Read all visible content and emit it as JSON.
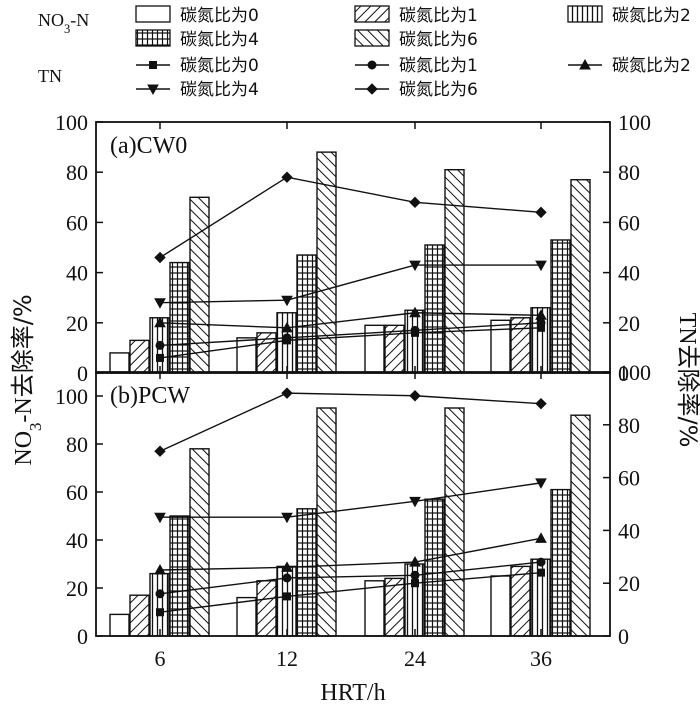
{
  "chart_data": [
    {
      "type": "bar",
      "panel_label": "(a)CW0",
      "categories": [
        "6",
        "12",
        "24",
        "36"
      ],
      "bar_series": [
        {
          "name": "碳氮比为0",
          "values": [
            8,
            14,
            19,
            21
          ]
        },
        {
          "name": "碳氮比为1",
          "values": [
            13,
            16,
            19,
            22
          ]
        },
        {
          "name": "碳氮比为2",
          "values": [
            22,
            24,
            25,
            26
          ]
        },
        {
          "name": "碳氮比为4",
          "values": [
            44,
            47,
            51,
            53
          ]
        },
        {
          "name": "碳氮比为6",
          "values": [
            70,
            88,
            81,
            77
          ]
        }
      ],
      "line_series": [
        {
          "name": "碳氮比为0",
          "values": [
            6,
            13,
            16,
            18
          ]
        },
        {
          "name": "碳氮比为1",
          "values": [
            11,
            14,
            17,
            20
          ]
        },
        {
          "name": "碳氮比为2",
          "values": [
            20,
            18,
            24,
            23
          ]
        },
        {
          "name": "碳氮比为4",
          "values": [
            28,
            29,
            43,
            43
          ]
        },
        {
          "name": "碳氮比为6",
          "values": [
            46,
            78,
            68,
            64
          ]
        }
      ],
      "ylim_left": [
        0,
        100
      ],
      "ylim_right": [
        0,
        100
      ],
      "yticks_left": [
        "0",
        "20",
        "40",
        "60",
        "80",
        "100"
      ],
      "yticks_right": [
        "0",
        "20",
        "40",
        "60",
        "80",
        "100"
      ]
    },
    {
      "type": "bar",
      "panel_label": "(b)PCW",
      "categories": [
        "6",
        "12",
        "24",
        "36"
      ],
      "bar_series": [
        {
          "name": "碳氮比为0",
          "values": [
            9,
            16,
            23,
            25
          ]
        },
        {
          "name": "碳氮比为1",
          "values": [
            17,
            23,
            24,
            29
          ]
        },
        {
          "name": "碳氮比为2",
          "values": [
            26,
            29,
            30,
            32
          ]
        },
        {
          "name": "碳氮比为4",
          "values": [
            50,
            53,
            57,
            61
          ]
        },
        {
          "name": "碳氮比为6",
          "values": [
            78,
            95,
            95,
            92
          ]
        }
      ],
      "line_series": [
        {
          "name": "碳氮比为0",
          "values": [
            9,
            15,
            20,
            24
          ]
        },
        {
          "name": "碳氮比为1",
          "values": [
            16,
            22,
            23,
            28
          ]
        },
        {
          "name": "碳氮比为2",
          "values": [
            25,
            26,
            28,
            37
          ]
        },
        {
          "name": "碳氮比为4",
          "values": [
            45,
            45,
            51,
            58
          ]
        },
        {
          "name": "碳氮比为6",
          "values": [
            70,
            92,
            91,
            88
          ]
        }
      ],
      "ylim_left": [
        0,
        110
      ],
      "ylim_right": [
        0,
        100
      ],
      "yticks_left": [
        "0",
        "20",
        "40",
        "60",
        "80",
        "100"
      ],
      "yticks_right": [
        "0",
        "20",
        "40",
        "60",
        "80",
        "100"
      ]
    }
  ],
  "axes": {
    "xlabel": "HRT/h",
    "ylabel_left": "NO3-N去除率/%",
    "ylabel_right": "TN去除率/%"
  },
  "legend": {
    "no3_group_label": "NO3-N",
    "tn_group_label": "TN",
    "bar_entries": [
      "碳氮比为0",
      "碳氮比为1",
      "碳氮比为2",
      "碳氮比为4",
      "碳氮比为6"
    ],
    "line_entries": [
      "碳氮比为0",
      "碳氮比为1",
      "碳氮比为2",
      "碳氮比为4",
      "碳氮比为6"
    ]
  }
}
